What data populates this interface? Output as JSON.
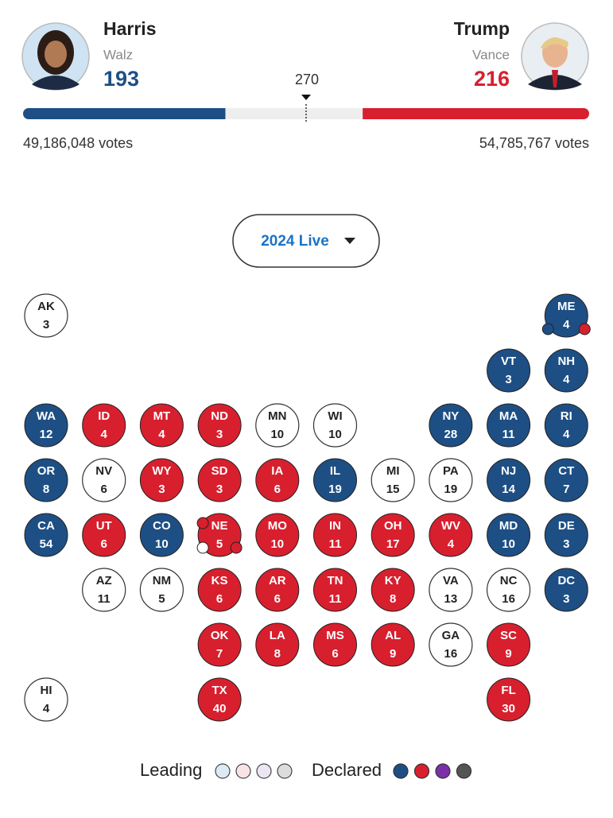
{
  "header": {
    "left": {
      "name": "Harris",
      "running_mate": "Walz",
      "electoral_votes": 193,
      "popular_votes": "49,186,048 votes",
      "color": "#1d4f85"
    },
    "right": {
      "name": "Trump",
      "running_mate": "Vance",
      "electoral_votes": 216,
      "popular_votes": "54,785,767 votes",
      "color": "#d81f2e"
    },
    "threshold": 270
  },
  "dropdown": {
    "label": "2024 Live"
  },
  "states": [
    {
      "abbr": "AK",
      "votes": 3,
      "color": "#ffffff"
    },
    {
      "abbr": "ME",
      "votes": 4,
      "color": "#1d4f85",
      "districts": [
        "#1d4f85",
        "#d81f2e"
      ]
    },
    {
      "abbr": "VT",
      "votes": 3,
      "color": "#1d4f85"
    },
    {
      "abbr": "NH",
      "votes": 4,
      "color": "#1d4f85"
    },
    {
      "abbr": "WA",
      "votes": 12,
      "color": "#1d4f85"
    },
    {
      "abbr": "ID",
      "votes": 4,
      "color": "#d81f2e"
    },
    {
      "abbr": "MT",
      "votes": 4,
      "color": "#d81f2e"
    },
    {
      "abbr": "ND",
      "votes": 3,
      "color": "#d81f2e"
    },
    {
      "abbr": "MN",
      "votes": 10,
      "color": "#ffffff"
    },
    {
      "abbr": "WI",
      "votes": 10,
      "color": "#ffffff"
    },
    {
      "abbr": "NY",
      "votes": 28,
      "color": "#1d4f85"
    },
    {
      "abbr": "MA",
      "votes": 11,
      "color": "#1d4f85"
    },
    {
      "abbr": "RI",
      "votes": 4,
      "color": "#1d4f85"
    },
    {
      "abbr": "OR",
      "votes": 8,
      "color": "#1d4f85"
    },
    {
      "abbr": "NV",
      "votes": 6,
      "color": "#ffffff"
    },
    {
      "abbr": "WY",
      "votes": 3,
      "color": "#d81f2e"
    },
    {
      "abbr": "SD",
      "votes": 3,
      "color": "#d81f2e"
    },
    {
      "abbr": "IA",
      "votes": 6,
      "color": "#d81f2e"
    },
    {
      "abbr": "IL",
      "votes": 19,
      "color": "#1d4f85"
    },
    {
      "abbr": "MI",
      "votes": 15,
      "color": "#ffffff"
    },
    {
      "abbr": "PA",
      "votes": 19,
      "color": "#ffffff"
    },
    {
      "abbr": "NJ",
      "votes": 14,
      "color": "#1d4f85"
    },
    {
      "abbr": "CT",
      "votes": 7,
      "color": "#1d4f85"
    },
    {
      "abbr": "CA",
      "votes": 54,
      "color": "#1d4f85"
    },
    {
      "abbr": "UT",
      "votes": 6,
      "color": "#d81f2e"
    },
    {
      "abbr": "CO",
      "votes": 10,
      "color": "#1d4f85"
    },
    {
      "abbr": "NE",
      "votes": 5,
      "color": "#d81f2e",
      "districts": [
        "#d81f2e",
        "#ffffff",
        "#d81f2e"
      ]
    },
    {
      "abbr": "MO",
      "votes": 10,
      "color": "#d81f2e"
    },
    {
      "abbr": "IN",
      "votes": 11,
      "color": "#d81f2e"
    },
    {
      "abbr": "OH",
      "votes": 17,
      "color": "#d81f2e"
    },
    {
      "abbr": "WV",
      "votes": 4,
      "color": "#d81f2e"
    },
    {
      "abbr": "MD",
      "votes": 10,
      "color": "#1d4f85"
    },
    {
      "abbr": "DE",
      "votes": 3,
      "color": "#1d4f85"
    },
    {
      "abbr": "AZ",
      "votes": 11,
      "color": "#ffffff"
    },
    {
      "abbr": "NM",
      "votes": 5,
      "color": "#ffffff"
    },
    {
      "abbr": "KS",
      "votes": 6,
      "color": "#d81f2e"
    },
    {
      "abbr": "AR",
      "votes": 6,
      "color": "#d81f2e"
    },
    {
      "abbr": "TN",
      "votes": 11,
      "color": "#d81f2e"
    },
    {
      "abbr": "KY",
      "votes": 8,
      "color": "#d81f2e"
    },
    {
      "abbr": "VA",
      "votes": 13,
      "color": "#ffffff"
    },
    {
      "abbr": "NC",
      "votes": 16,
      "color": "#ffffff"
    },
    {
      "abbr": "DC",
      "votes": 3,
      "color": "#1d4f85"
    },
    {
      "abbr": "OK",
      "votes": 7,
      "color": "#d81f2e"
    },
    {
      "abbr": "LA",
      "votes": 8,
      "color": "#d81f2e"
    },
    {
      "abbr": "MS",
      "votes": 6,
      "color": "#d81f2e"
    },
    {
      "abbr": "AL",
      "votes": 9,
      "color": "#d81f2e"
    },
    {
      "abbr": "GA",
      "votes": 16,
      "color": "#ffffff"
    },
    {
      "abbr": "SC",
      "votes": 9,
      "color": "#d81f2e"
    },
    {
      "abbr": "HI",
      "votes": 4,
      "color": "#ffffff"
    },
    {
      "abbr": "TX",
      "votes": 40,
      "color": "#d81f2e"
    },
    {
      "abbr": "FL",
      "votes": 30,
      "color": "#d81f2e"
    }
  ],
  "legend": {
    "leading": {
      "label": "Leading",
      "colors": [
        "#dbeaf5",
        "#f8e3e6",
        "#ece6f3",
        "#dcdcdc"
      ]
    },
    "declared": {
      "label": "Declared",
      "colors": [
        "#1d4f85",
        "#d81f2e",
        "#7b2fa8",
        "#555555"
      ]
    }
  }
}
